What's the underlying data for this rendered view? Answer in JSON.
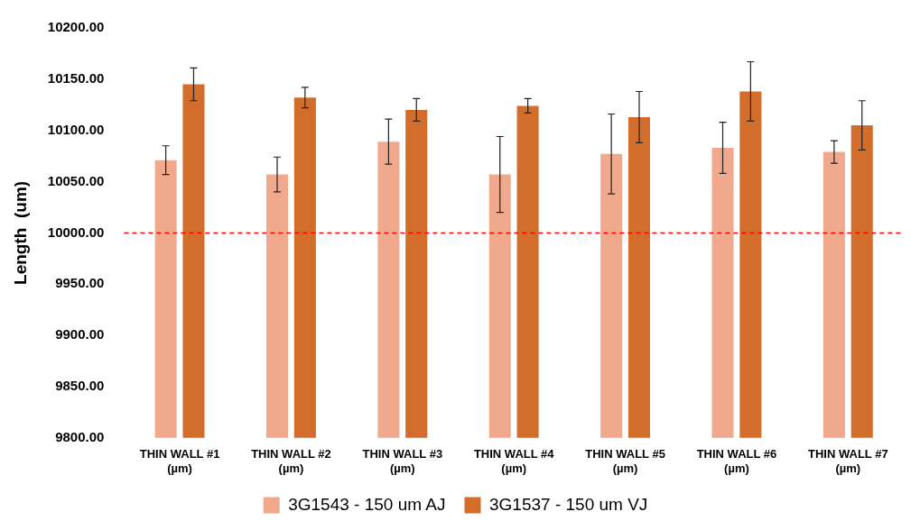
{
  "chart_data": {
    "type": "bar",
    "ylabel": "Length  (um)",
    "categories": [
      "THIN WALL #1\n(µm)",
      "THIN WALL #2\n(µm)",
      "THIN WALL #3\n(µm)",
      "THIN WALL #4\n(µm)",
      "THIN WALL #5\n(µm)",
      "THIN WALL #6\n(µm)",
      "THIN WALL #7\n(µm)"
    ],
    "series": [
      {
        "name": "3G1543 - 150 um AJ",
        "color": "#f0a98c",
        "values": [
          10071,
          10057,
          10089,
          10057,
          10077,
          10083,
          10079
        ],
        "errors": [
          14,
          17,
          22,
          37,
          39,
          25,
          11
        ]
      },
      {
        "name": "3G1537 - 150 um VJ",
        "color": "#d36d2b",
        "values": [
          10145,
          10132,
          10120,
          10124,
          10113,
          10138,
          10105
        ],
        "errors": [
          16,
          10,
          11,
          7,
          25,
          29,
          24
        ]
      }
    ],
    "ylim": [
      9800,
      10200
    ],
    "yticks": [
      {
        "value": 9800,
        "label": "9800.00"
      },
      {
        "value": 9850,
        "label": "9850.00"
      },
      {
        "value": 9900,
        "label": "9900.00"
      },
      {
        "value": 9950,
        "label": "9950.00"
      },
      {
        "value": 10000,
        "label": "10000.00"
      },
      {
        "value": 10050,
        "label": "10050.00"
      },
      {
        "value": 10100,
        "label": "10100.00"
      },
      {
        "value": 10150,
        "label": "10150.00"
      },
      {
        "value": 10200,
        "label": "10200.00"
      }
    ],
    "ref_lines": [
      {
        "axis": "y",
        "value": 10000,
        "color": "#ff0000",
        "line_style": "dashed"
      }
    ],
    "grid": false,
    "legend": "bottom"
  }
}
